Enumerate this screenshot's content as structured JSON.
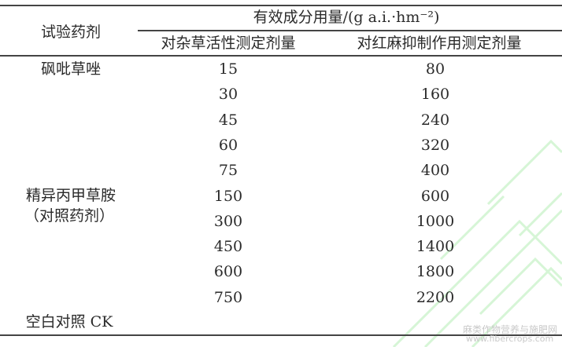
{
  "table": {
    "header": {
      "agent_col": "试验药剂",
      "group": "有效成分用量/(g a.i.·hm⁻²)",
      "sub_cols": [
        "对杂草活性测定剂量",
        "对红麻抑制作用测定剂量"
      ]
    },
    "groups": [
      {
        "agent": "砜吡草唑",
        "agent_note": ""
      },
      {
        "agent": "精异丙甲草胺",
        "agent_note": "（对照药剂）"
      },
      {
        "agent": "空白对照 CK",
        "agent_note": ""
      }
    ],
    "rows": [
      [
        "15",
        "80"
      ],
      [
        "30",
        "160"
      ],
      [
        "45",
        "240"
      ],
      [
        "60",
        "320"
      ],
      [
        "75",
        "400"
      ],
      [
        "150",
        "600"
      ],
      [
        "300",
        "1000"
      ],
      [
        "450",
        "1400"
      ],
      [
        "600",
        "1800"
      ],
      [
        "750",
        "2200"
      ]
    ]
  },
  "watermark": {
    "line1": "麻类作物营养与施肥网",
    "line2": "www.fibercrops.com",
    "color": "#c8f0c8"
  }
}
